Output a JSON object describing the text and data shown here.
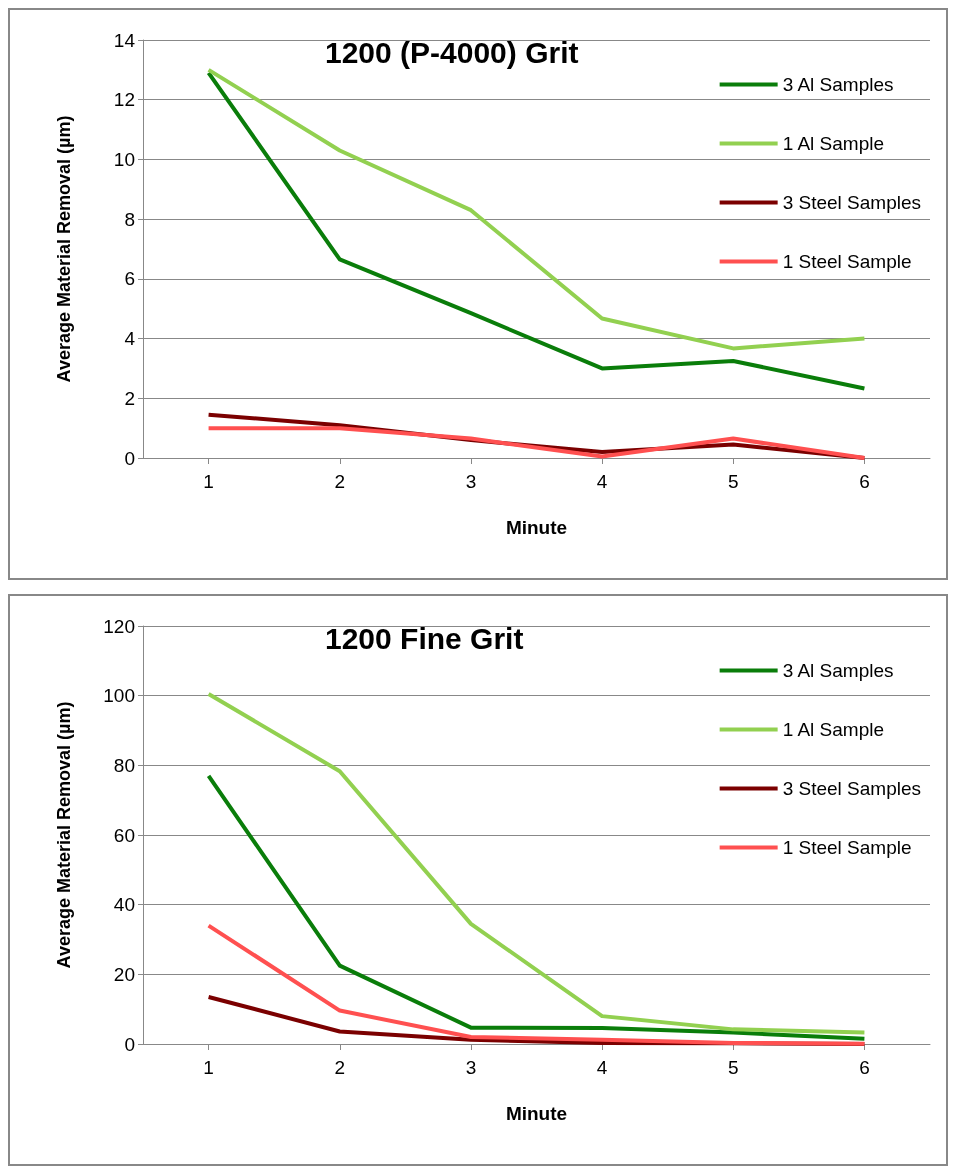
{
  "chart_data": [
    {
      "type": "line",
      "title": "1200 (P-4000) Grit",
      "xlabel": "Minute",
      "ylabel": "Average Material Removal (µm)",
      "categories": [
        "1",
        "2",
        "3",
        "4",
        "5",
        "6"
      ],
      "ylim": [
        0,
        14
      ],
      "yticks": [
        0,
        2,
        4,
        6,
        8,
        10,
        12,
        14
      ],
      "grid": "y",
      "legend": "right",
      "marker": "none",
      "series": [
        {
          "name": "3 Al Samples",
          "color": "#0a7d0a",
          "values": [
            12.9,
            6.65,
            4.85,
            3.0,
            3.25,
            2.33
          ]
        },
        {
          "name": "1 Al Sample",
          "color": "#92d050",
          "values": [
            13.0,
            10.3,
            8.3,
            4.67,
            3.67,
            4.0
          ]
        },
        {
          "name": "3 Steel Samples",
          "color": "#7b0000",
          "values": [
            1.45,
            1.1,
            0.6,
            0.2,
            0.45,
            0
          ]
        },
        {
          "name": "1 Steel Sample",
          "color": "#ff5050",
          "values": [
            1.0,
            1.0,
            0.65,
            0.05,
            0.65,
            0
          ]
        }
      ]
    },
    {
      "type": "line",
      "title": "1200 Fine Grit",
      "xlabel": "Minute",
      "ylabel": "Average Material Removal (µm)",
      "categories": [
        "1",
        "2",
        "3",
        "4",
        "5",
        "6"
      ],
      "ylim": [
        0,
        120
      ],
      "yticks": [
        0,
        20,
        40,
        60,
        80,
        100,
        120
      ],
      "grid": "y",
      "legend": "right",
      "marker": "none",
      "series": [
        {
          "name": "3 Al Samples",
          "color": "#0a7d0a",
          "values": [
            77,
            22.5,
            4.7,
            4.6,
            3.3,
            1.5
          ]
        },
        {
          "name": "1 Al Sample",
          "color": "#92d050",
          "values": [
            100.5,
            78.3,
            34.5,
            8,
            4.2,
            3.3
          ]
        },
        {
          "name": "3 Steel Samples",
          "color": "#7b0000",
          "values": [
            13.5,
            3.6,
            1.2,
            0.3,
            0.2,
            0
          ]
        },
        {
          "name": "1 Steel Sample",
          "color": "#ff5050",
          "values": [
            34,
            9.6,
            2,
            1.2,
            0.3,
            0.1
          ]
        }
      ]
    }
  ]
}
